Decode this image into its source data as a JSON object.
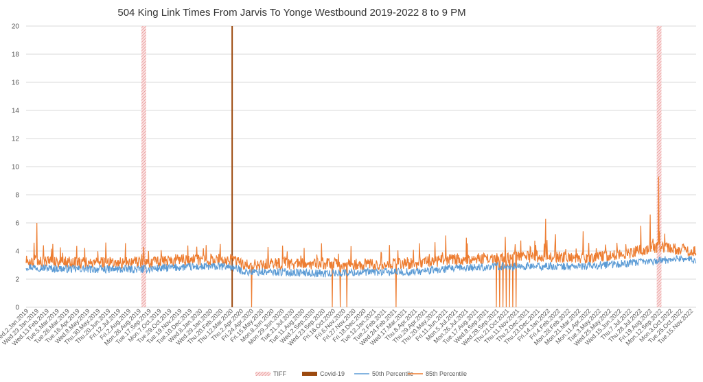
{
  "chart_data": {
    "type": "line",
    "title": "504 King Link Times From Jarvis To Yonge Westbound 2019-2022 8 to 9 PM",
    "xlabel": "",
    "ylabel": "",
    "ylim": [
      0,
      20
    ],
    "yticks": [
      0,
      2,
      4,
      6,
      8,
      10,
      12,
      14,
      16,
      18,
      20
    ],
    "grid": true,
    "legend_position": "bottom",
    "x_start": "2019-01-02",
    "x_end": "2022-12-01",
    "x_tick_labels": [
      "Wed.2.Jan.2019",
      "Wed.23.Jan.2019",
      "Wed.13.Feb.2019",
      "Tue.5.Mar.2019",
      "Tue.26.Mar.2019",
      "Tue.16.Apr.2019",
      "Wed.8.May.2019",
      "Thu.30.May.2019",
      "Thu.20.Jun.2019",
      "Fri.12.Jul.2019",
      "Fri.2.Aug.2019",
      "Mon.26.Aug.2019",
      "Tue.17.Sep.2019",
      "Mon.7.Oct.2019",
      "Tue.29.Oct.2019",
      "Tue.19.Nov.2019",
      "Tue.10.Dec.2019",
      "Wed.8.Jan.2020",
      "Wed.29.Jan.2020",
      "Thu.20.Feb.2020",
      "Thu.12.Mar.2020",
      "Thu.2.Apr.2020",
      "Fri.24.Apr.2020",
      "Fri.15.May.2020",
      "Mon.8.Jun.2020",
      "Mon.29.Jun.2020",
      "Tue.21.Jul.2020",
      "Tue.11.Aug.2020",
      "Wed.2.Sep.2020",
      "Wed.23.Sep.2020",
      "Fri.16.Oct.2020",
      "Fri.6.Nov.2020",
      "Fri.27.Nov.2020",
      "Fri.18.Dec.2020",
      "Tue.12.Jan.2021",
      "Tue.2.Feb.2021",
      "Wed.24.Feb.2021",
      "Wed.17.Mar.2021",
      "Thu.8.Apr.2021",
      "Thu.29.Apr.2021",
      "Thu.20.May.2021",
      "Fri.11.Jun.2021",
      "Mon.5.Jul.2021",
      "Mon.26.Jul.2021",
      "Tue.17.Aug.2021",
      "Wed.8.Sep.2021",
      "Wed.29.Sep.2021",
      "Thu.21.Oct.2021",
      "Thu.11.Nov.2021",
      "Thu.2.Dec.2021",
      "Thu.23.Dec.2021",
      "Fri.14.Jan.2022",
      "Fri.4.Feb.2022",
      "Mon.28.Feb.2022",
      "Mon.21.Mar.2022",
      "Mon.11.Apr.2022",
      "Tue.3.May.2022",
      "Wed.25.May.2022",
      "Wed.15.Jun.2022",
      "Thu.7.Jul.2022",
      "Thu.28.Jul.2022",
      "Fri.19.Aug.2022",
      "Mon.12.Sep.2022",
      "Mon.3.Oct.2022",
      "Tue.25.Oct.2022",
      "Tue.15.Nov.2022"
    ],
    "event_markers": [
      {
        "legend": "TIFF",
        "start": "2019-09-05",
        "end": "2019-09-15",
        "style": "hatched",
        "color": "#f4b6b6"
      },
      {
        "legend": "Covid-19",
        "start": "2020-03-15",
        "end": "2020-03-17",
        "style": "solid",
        "color": "#9c4a0f"
      },
      {
        "legend": "TIFF",
        "start": "2022-09-08",
        "end": "2022-09-18",
        "style": "hatched",
        "color": "#f4b6b6"
      }
    ],
    "series": [
      {
        "name": "50th Percentile",
        "color": "#5b9bd5",
        "points": [
          [
            "2019-01-02",
            2.9
          ],
          [
            "2019-03-01",
            2.75
          ],
          [
            "2019-06-01",
            2.7
          ],
          [
            "2019-09-01",
            2.7
          ],
          [
            "2019-12-01",
            2.85
          ],
          [
            "2020-03-10",
            2.9
          ],
          [
            "2020-04-15",
            2.5
          ],
          [
            "2020-07-01",
            2.5
          ],
          [
            "2020-10-01",
            2.4
          ],
          [
            "2021-01-01",
            2.5
          ],
          [
            "2021-04-01",
            2.5
          ],
          [
            "2021-07-01",
            2.75
          ],
          [
            "2021-10-01",
            2.9
          ],
          [
            "2022-01-01",
            2.9
          ],
          [
            "2022-04-01",
            2.9
          ],
          [
            "2022-07-01",
            3.1
          ],
          [
            "2022-09-10",
            3.3
          ],
          [
            "2022-11-01",
            3.5
          ],
          [
            "2022-12-01",
            3.3
          ]
        ]
      },
      {
        "name": "85th Percentile",
        "color": "#ed7d31",
        "points": [
          [
            "2019-01-02",
            3.3
          ],
          [
            "2019-03-01",
            3.25
          ],
          [
            "2019-06-01",
            3.15
          ],
          [
            "2019-09-01",
            3.2
          ],
          [
            "2019-12-01",
            3.4
          ],
          [
            "2020-03-10",
            3.4
          ],
          [
            "2020-04-15",
            3.0
          ],
          [
            "2020-07-01",
            3.1
          ],
          [
            "2020-10-01",
            3.1
          ],
          [
            "2021-01-01",
            3.05
          ],
          [
            "2021-04-01",
            3.1
          ],
          [
            "2021-07-01",
            3.4
          ],
          [
            "2021-10-01",
            3.5
          ],
          [
            "2022-01-01",
            3.6
          ],
          [
            "2022-04-01",
            3.5
          ],
          [
            "2022-07-01",
            3.8
          ],
          [
            "2022-09-10",
            4.3
          ],
          [
            "2022-11-01",
            4.1
          ],
          [
            "2022-12-01",
            3.9
          ]
        ],
        "spikes": [
          [
            "2019-01-25",
            6.0
          ],
          [
            "2019-02-28",
            4.5
          ],
          [
            "2019-06-21",
            4.6
          ],
          [
            "2019-09-20",
            4.0
          ],
          [
            "2020-02-20",
            4.5
          ],
          [
            "2021-06-15",
            5.1
          ],
          [
            "2021-10-20",
            5.0
          ],
          [
            "2022-01-14",
            6.3
          ],
          [
            "2022-02-04",
            5.2
          ],
          [
            "2022-04-04",
            5.4
          ],
          [
            "2022-08-05",
            5.8
          ],
          [
            "2022-08-25",
            6.6
          ],
          [
            "2022-09-12",
            9.3
          ]
        ],
        "dropouts": [
          [
            "2020-04-27",
            0
          ],
          [
            "2020-10-16",
            0
          ],
          [
            "2020-11-02",
            0
          ],
          [
            "2020-11-16",
            0
          ],
          [
            "2021-03-01",
            0
          ],
          [
            "2021-10-01",
            0
          ],
          [
            "2021-10-08",
            0
          ],
          [
            "2021-10-15",
            0
          ],
          [
            "2021-10-22",
            0
          ],
          [
            "2021-10-29",
            0
          ],
          [
            "2021-11-05",
            0
          ],
          [
            "2021-11-12",
            0
          ]
        ]
      }
    ],
    "legend": [
      {
        "label": "TIFF",
        "swatch": "hatched",
        "color": "#f4b6b6"
      },
      {
        "label": "Covid-19",
        "swatch": "solid",
        "color": "#9c4a0f"
      },
      {
        "label": "50th Percentile",
        "swatch": "line",
        "color": "#5b9bd5"
      },
      {
        "label": "85th Percentile",
        "swatch": "line",
        "color": "#ed7d31"
      }
    ]
  }
}
